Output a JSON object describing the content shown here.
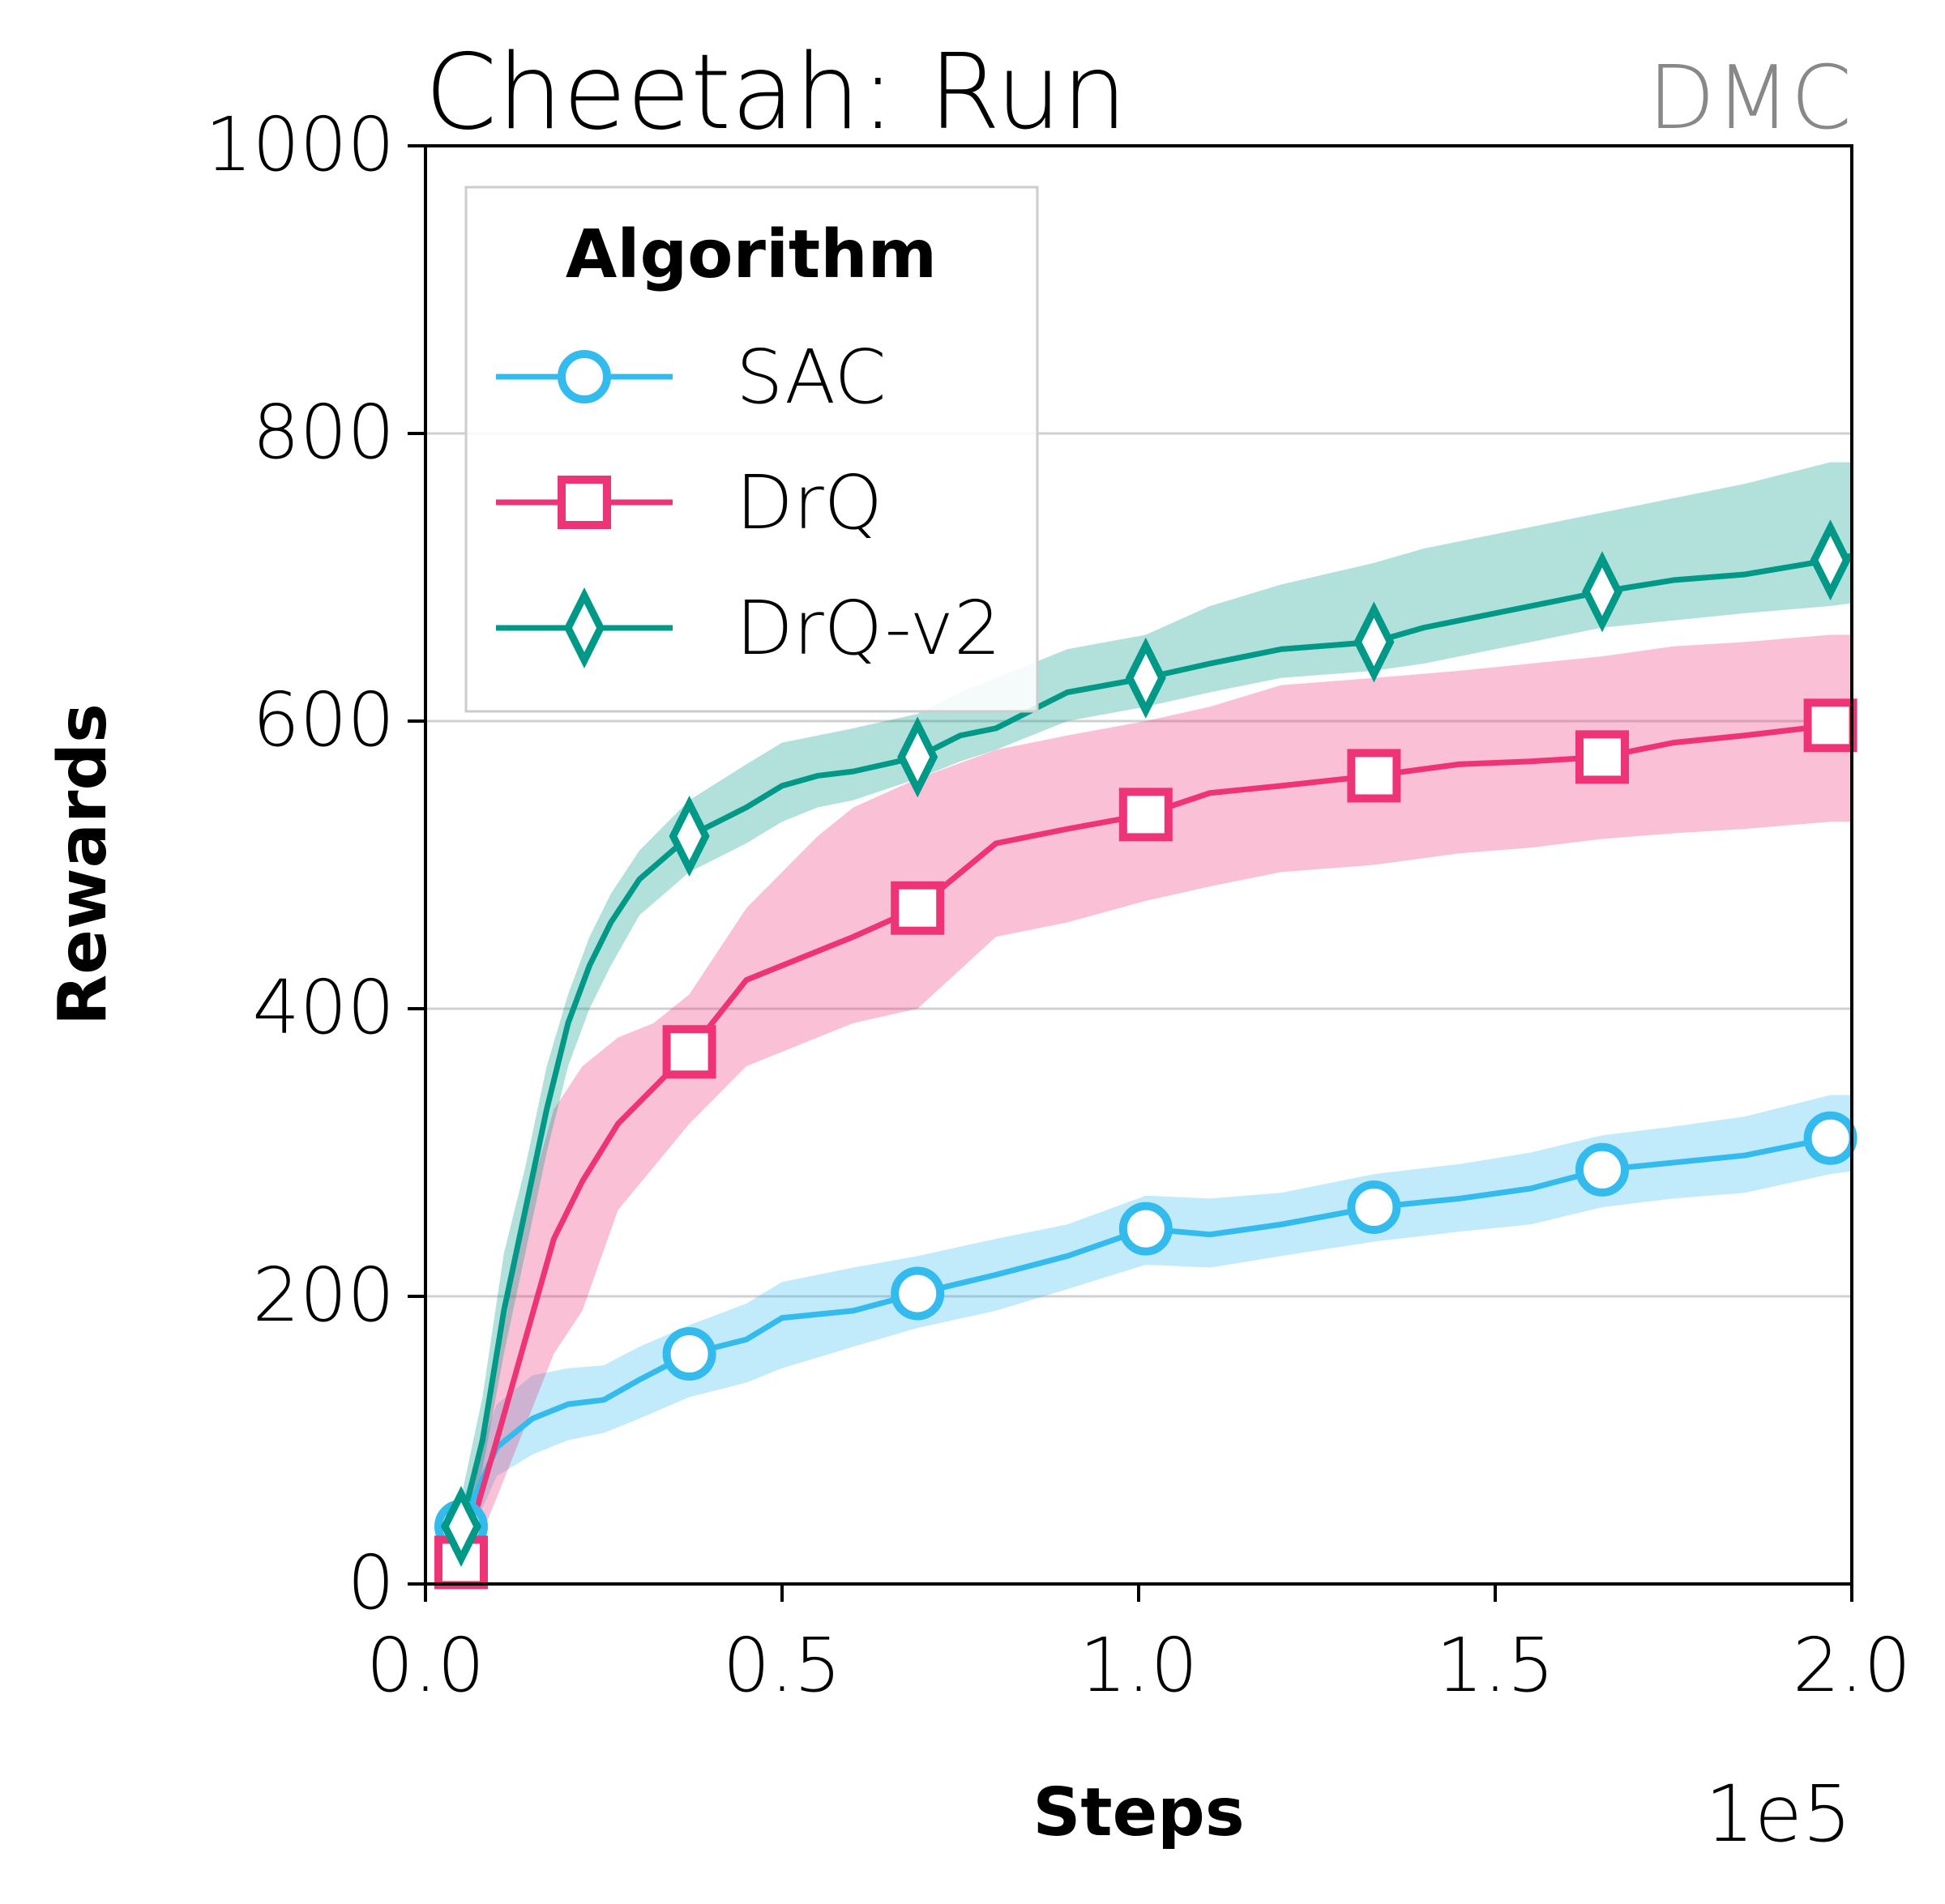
{
  "chart_data": {
    "type": "line",
    "title": "Cheetah: Run",
    "subtitle": "DMC",
    "xlabel": "Steps",
    "ylabel": "Rewards",
    "x_offset_label": "1e5",
    "xlim": [
      0.0,
      2.0
    ],
    "ylim": [
      0,
      1000
    ],
    "xticks": [
      "0.0",
      "0.5",
      "1.0",
      "1.5",
      "2.0"
    ],
    "yticks": [
      "0",
      "200",
      "400",
      "600",
      "800",
      "1000"
    ],
    "grid": "horizontal",
    "legend": {
      "title": "Algorithm",
      "placement": "upper-left",
      "entries": [
        "SAC",
        "DrQ",
        "DrQ-v2"
      ]
    },
    "series": [
      {
        "name": "SAC",
        "color": "#33bbee",
        "marker": "circle",
        "x": [
          0.05,
          0.1,
          0.15,
          0.2,
          0.25,
          0.3,
          0.37,
          0.45,
          0.5,
          0.6,
          0.69,
          0.8,
          0.9,
          1.01,
          1.1,
          1.2,
          1.33,
          1.45,
          1.55,
          1.65,
          1.75,
          1.85,
          1.97,
          2.0
        ],
        "y": [
          40,
          95,
          115,
          125,
          128,
          142,
          160,
          170,
          185,
          190,
          202,
          215,
          228,
          247,
          243,
          250,
          262,
          268,
          275,
          288,
          293,
          298,
          310,
          312
        ],
        "lower": [
          20,
          75,
          90,
          100,
          105,
          115,
          130,
          140,
          150,
          165,
          178,
          190,
          205,
          222,
          220,
          228,
          238,
          245,
          250,
          262,
          268,
          272,
          285,
          287
        ],
        "upper": [
          55,
          125,
          145,
          150,
          152,
          165,
          180,
          195,
          210,
          220,
          228,
          240,
          250,
          270,
          268,
          272,
          285,
          292,
          300,
          312,
          318,
          325,
          340,
          340
        ],
        "marker_x": [
          0.05,
          0.37,
          0.69,
          1.01,
          1.33,
          1.65,
          1.97
        ]
      },
      {
        "name": "DrQ",
        "color": "#ee3377",
        "marker": "square",
        "x": [
          0.05,
          0.1,
          0.14,
          0.18,
          0.22,
          0.27,
          0.32,
          0.37,
          0.45,
          0.55,
          0.6,
          0.69,
          0.8,
          0.9,
          1.01,
          1.1,
          1.2,
          1.33,
          1.45,
          1.55,
          1.65,
          1.75,
          1.85,
          1.97,
          2.0
        ],
        "y": [
          15,
          100,
          170,
          240,
          280,
          320,
          345,
          370,
          420,
          440,
          450,
          470,
          515,
          525,
          535,
          550,
          555,
          562,
          570,
          572,
          575,
          585,
          590,
          597,
          598
        ],
        "lower": [
          0,
          60,
          110,
          160,
          190,
          260,
          290,
          320,
          360,
          380,
          390,
          400,
          450,
          460,
          475,
          485,
          495,
          500,
          508,
          512,
          518,
          522,
          525,
          530,
          530
        ],
        "upper": [
          40,
          150,
          260,
          330,
          360,
          380,
          390,
          410,
          470,
          520,
          540,
          560,
          580,
          590,
          600,
          610,
          625,
          630,
          635,
          640,
          645,
          652,
          655,
          660,
          660
        ],
        "marker_x": [
          0.05,
          0.37,
          0.69,
          1.01,
          1.33,
          1.65,
          1.97
        ]
      },
      {
        "name": "DrQ-v2",
        "color": "#009988",
        "marker": "thin_diamond",
        "x": [
          0.05,
          0.08,
          0.11,
          0.14,
          0.17,
          0.2,
          0.23,
          0.26,
          0.3,
          0.37,
          0.45,
          0.5,
          0.55,
          0.6,
          0.69,
          0.75,
          0.8,
          0.9,
          1.01,
          1.1,
          1.2,
          1.33,
          1.4,
          1.5,
          1.6,
          1.65,
          1.75,
          1.85,
          1.97,
          2.0
        ],
        "y": [
          40,
          100,
          190,
          260,
          330,
          390,
          430,
          460,
          490,
          520,
          540,
          555,
          562,
          565,
          575,
          590,
          595,
          620,
          630,
          640,
          650,
          655,
          665,
          675,
          685,
          690,
          698,
          702,
          712,
          715
        ],
        "lower": [
          20,
          80,
          160,
          230,
          300,
          360,
          400,
          430,
          465,
          495,
          515,
          530,
          540,
          545,
          560,
          572,
          580,
          600,
          610,
          620,
          630,
          635,
          640,
          650,
          660,
          665,
          670,
          675,
          680,
          682
        ],
        "upper": [
          60,
          130,
          230,
          290,
          360,
          410,
          450,
          480,
          510,
          545,
          570,
          585,
          590,
          595,
          605,
          620,
          630,
          650,
          660,
          680,
          695,
          710,
          720,
          730,
          740,
          745,
          755,
          765,
          780,
          780
        ],
        "marker_x": [
          0.05,
          0.37,
          0.69,
          1.01,
          1.33,
          1.65,
          1.97
        ]
      }
    ]
  }
}
